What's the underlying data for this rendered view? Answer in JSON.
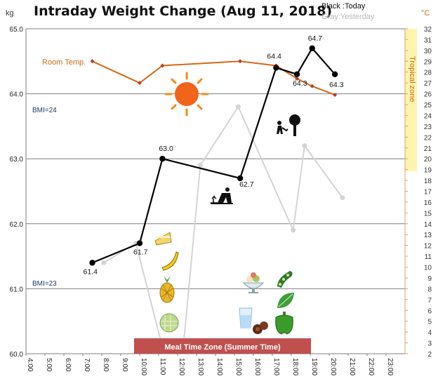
{
  "chart_data": {
    "type": "line",
    "title": "Intraday Weight Change (Aug 11, 2018)",
    "legend": {
      "today": "Black :Today",
      "yesterday": "Gray:Yesterday"
    },
    "y_left": {
      "unit": "kg",
      "ylim": [
        60.0,
        65.0
      ],
      "ticks": [
        "60.0",
        "61.0",
        "62.0",
        "63.0",
        "64.0",
        "65.0"
      ]
    },
    "y_right": {
      "unit": "°C",
      "ylim": [
        2,
        32
      ],
      "ticks": [
        "2",
        "3",
        "4",
        "5",
        "6",
        "7",
        "8",
        "9",
        "10",
        "11",
        "12",
        "13",
        "14",
        "15",
        "16",
        "17",
        "18",
        "19",
        "20",
        "21",
        "22",
        "23",
        "24",
        "25",
        "26",
        "27",
        "28",
        "29",
        "30",
        "31",
        "32"
      ]
    },
    "x": {
      "xlim": [
        4,
        24
      ],
      "ticks": [
        "4:00",
        "5:00",
        "6:00",
        "7:00",
        "8:00",
        "9:00",
        "10:00",
        "11:00",
        "12:00",
        "13:00",
        "14:00",
        "15:00",
        "16:00",
        "17:00",
        "18:00",
        "19:00",
        "20:00",
        "21:00",
        "22:00",
        "23:00"
      ]
    },
    "grid": true,
    "series": [
      {
        "name": "Black :Today",
        "color": "#000000",
        "points": [
          {
            "x": 7.5,
            "y": 61.4
          },
          {
            "x": 10.0,
            "y": 61.7
          },
          {
            "x": 11.2,
            "y": 63.0
          },
          {
            "x": 15.3,
            "y": 62.7
          },
          {
            "x": 17.2,
            "y": 64.4
          },
          {
            "x": 18.3,
            "y": 64.3
          },
          {
            "x": 19.1,
            "y": 64.7
          },
          {
            "x": 20.3,
            "y": 64.3
          }
        ],
        "labels": [
          "61.4",
          "61.7",
          "63.0",
          "62.7",
          "64.4",
          "64.3",
          "64.7",
          "64.3"
        ]
      },
      {
        "name": "Gray:Yesterday",
        "color": "#d4d4d4",
        "points": [
          {
            "x": 8.1,
            "y": 61.4
          },
          {
            "x": 9.8,
            "y": 61.7
          },
          {
            "x": 11.2,
            "y": 60.1
          },
          {
            "x": 12.3,
            "y": 60.1
          },
          {
            "x": 13.2,
            "y": 62.9
          },
          {
            "x": 15.2,
            "y": 63.8
          },
          {
            "x": 18.1,
            "y": 61.9
          },
          {
            "x": 18.7,
            "y": 63.2
          },
          {
            "x": 20.7,
            "y": 62.4
          }
        ]
      },
      {
        "name": "Room Temp.",
        "color": "#d06a14",
        "axis": "right",
        "points": [
          {
            "x": 7.5,
            "y": 29
          },
          {
            "x": 10.0,
            "y": 27
          },
          {
            "x": 11.2,
            "y": 28.6
          },
          {
            "x": 15.3,
            "y": 29
          },
          {
            "x": 17.2,
            "y": 28.6
          },
          {
            "x": 18.3,
            "y": 27.4
          },
          {
            "x": 19.1,
            "y": 26.7
          },
          {
            "x": 20.3,
            "y": 25.9
          }
        ]
      }
    ],
    "bands": {
      "tropical": {
        "label": "Tropical zone",
        "from": 20,
        "to": 32,
        "color": "#fff3b0"
      },
      "meal": {
        "label": "Meal Time Zone  (Summer Time)",
        "from": 10.2,
        "to": 18.5,
        "color": "#c0504d"
      }
    },
    "annotations": {
      "bmi_24": "BMI=24",
      "bmi_23": "BMI=23",
      "room_temp": "Room Temp."
    },
    "icons": [
      "sun-icon",
      "gardener-icon",
      "planting-icon",
      "cake-icon",
      "banana-icon",
      "pineapple-icon",
      "melon-icon",
      "dessert-icon",
      "soybean-icon",
      "leaf-icon",
      "water-glass-icon",
      "chocolate-icon",
      "green-pepper-icon"
    ]
  }
}
